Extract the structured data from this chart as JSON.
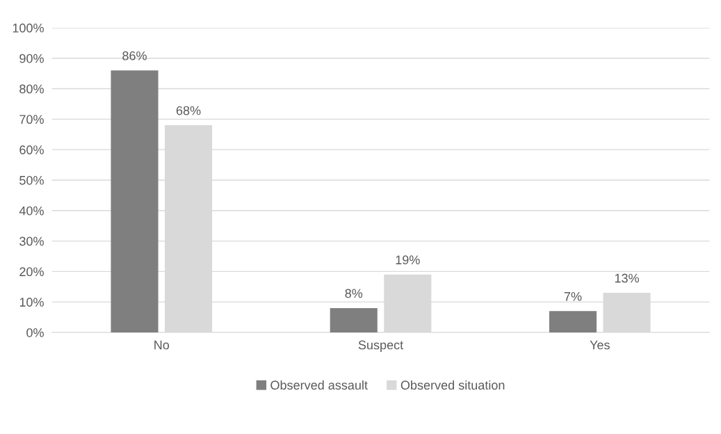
{
  "chart_data": {
    "type": "bar",
    "categories": [
      "No",
      "Suspect",
      "Yes"
    ],
    "series": [
      {
        "name": "Observed assault",
        "color": "#7f7f7f",
        "values": [
          86,
          8,
          7
        ],
        "value_labels": [
          "86%",
          "8%",
          "7%"
        ]
      },
      {
        "name": "Observed situation",
        "color": "#d9d9d9",
        "values": [
          68,
          19,
          13
        ],
        "value_labels": [
          "68%",
          "19%",
          "13%"
        ]
      }
    ],
    "ylim": [
      0,
      100
    ],
    "yticks": [
      {
        "value": 0,
        "label": "0%"
      },
      {
        "value": 10,
        "label": "10%"
      },
      {
        "value": 20,
        "label": "20%"
      },
      {
        "value": 30,
        "label": "30%"
      },
      {
        "value": 40,
        "label": "40%"
      },
      {
        "value": 50,
        "label": "50%"
      },
      {
        "value": 60,
        "label": "60%"
      },
      {
        "value": 70,
        "label": "70%"
      },
      {
        "value": 80,
        "label": "80%"
      },
      {
        "value": 90,
        "label": "90%"
      },
      {
        "value": 100,
        "label": "100%"
      }
    ],
    "grid": "y",
    "legend": "bottom"
  }
}
